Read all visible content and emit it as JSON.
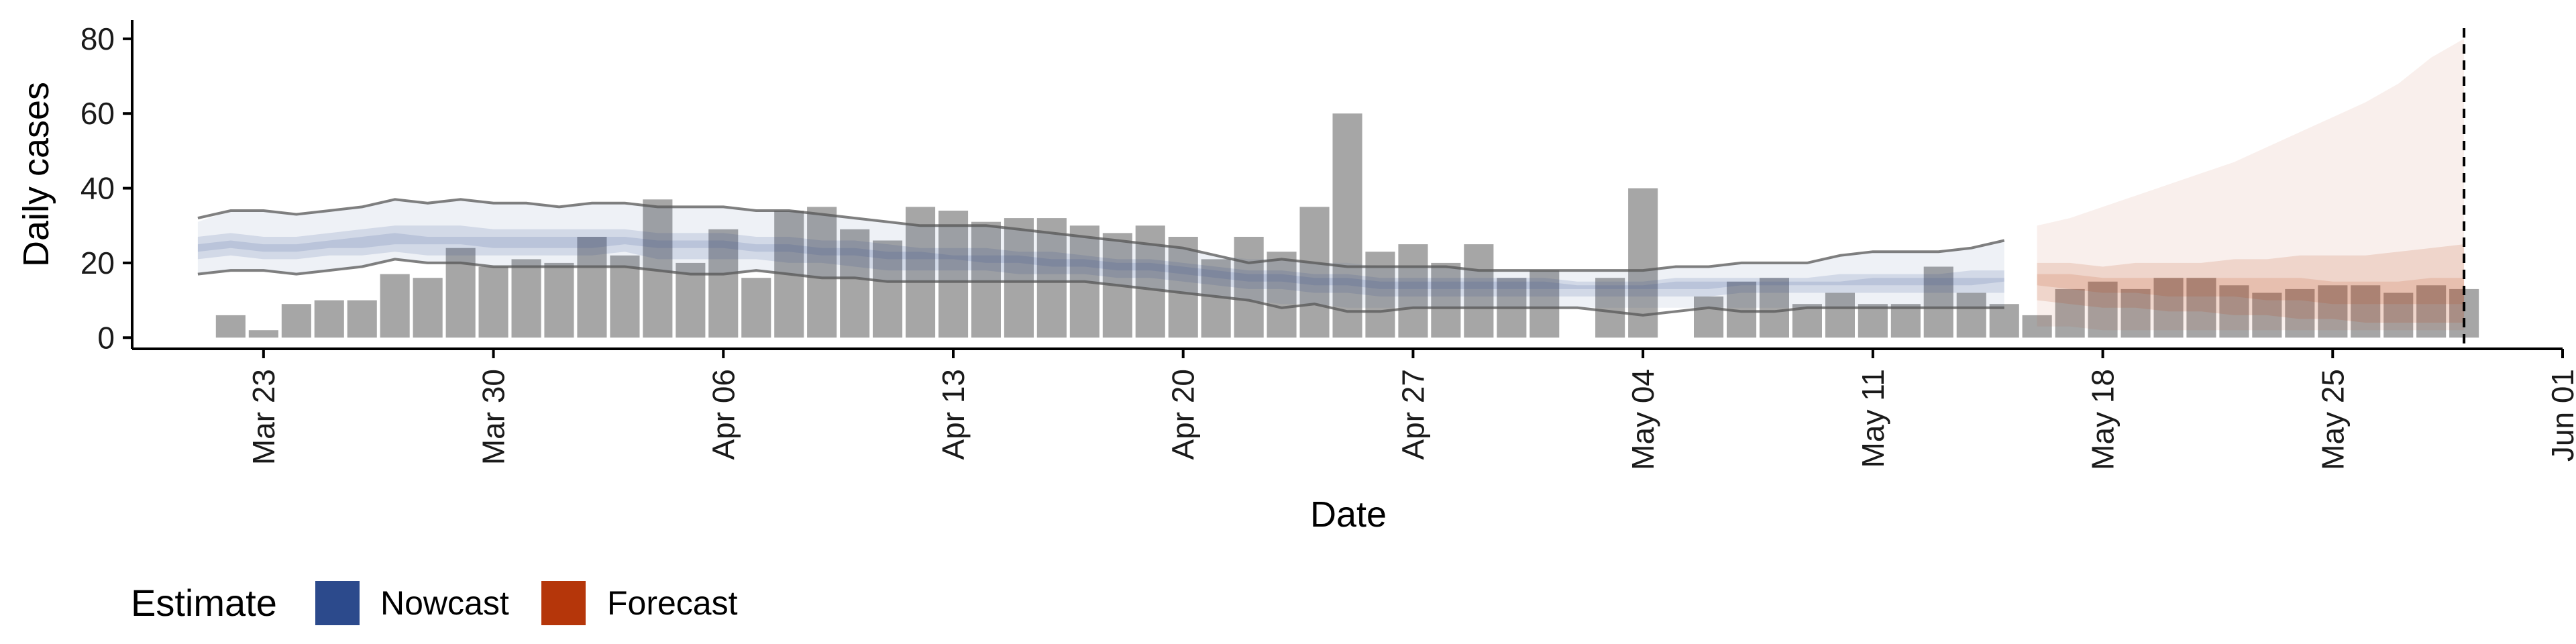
{
  "chart_data": {
    "type": "bar",
    "xlabel": "Date",
    "ylabel": "Daily cases",
    "ylim": [
      -3,
      85
    ],
    "xlim": [
      "2020-03-19",
      "2020-06-01"
    ],
    "y_ticks": [
      0,
      20,
      40,
      60,
      80
    ],
    "x_ticks": [
      "2020-03-23",
      "2020-03-30",
      "2020-04-06",
      "2020-04-13",
      "2020-04-20",
      "2020-04-27",
      "2020-05-04",
      "2020-05-11",
      "2020-05-18",
      "2020-05-25",
      "2020-06-01"
    ],
    "x_tick_labels": [
      "Mar 23",
      "Mar 30",
      "Apr 06",
      "Apr 13",
      "Apr 20",
      "Apr 27",
      "May 04",
      "May 11",
      "May 18",
      "May 25",
      "Jun 01"
    ],
    "grid": false,
    "legend_position": "bottom-left",
    "bars": {
      "dates": [
        "2020-03-22",
        "2020-03-23",
        "2020-03-24",
        "2020-03-25",
        "2020-03-26",
        "2020-03-27",
        "2020-03-28",
        "2020-03-29",
        "2020-03-30",
        "2020-03-31",
        "2020-04-01",
        "2020-04-02",
        "2020-04-03",
        "2020-04-04",
        "2020-04-05",
        "2020-04-06",
        "2020-04-07",
        "2020-04-08",
        "2020-04-09",
        "2020-04-10",
        "2020-04-11",
        "2020-04-12",
        "2020-04-13",
        "2020-04-14",
        "2020-04-15",
        "2020-04-16",
        "2020-04-17",
        "2020-04-18",
        "2020-04-19",
        "2020-04-20",
        "2020-04-21",
        "2020-04-22",
        "2020-04-23",
        "2020-04-24",
        "2020-04-25",
        "2020-04-26",
        "2020-04-27",
        "2020-04-28",
        "2020-04-29",
        "2020-04-30",
        "2020-05-01",
        "2020-05-02",
        "2020-05-03",
        "2020-05-04",
        "2020-05-05",
        "2020-05-06",
        "2020-05-07",
        "2020-05-08",
        "2020-05-09",
        "2020-05-10",
        "2020-05-11",
        "2020-05-12",
        "2020-05-13",
        "2020-05-14",
        "2020-05-15",
        "2020-05-16",
        "2020-05-17",
        "2020-05-18",
        "2020-05-19",
        "2020-05-20",
        "2020-05-21",
        "2020-05-22",
        "2020-05-23",
        "2020-05-24",
        "2020-05-25",
        "2020-05-26",
        "2020-05-27",
        "2020-05-28",
        "2020-05-29"
      ],
      "values": [
        6,
        2,
        9,
        10,
        10,
        17,
        16,
        24,
        19,
        21,
        20,
        27,
        22,
        37,
        20,
        29,
        16,
        34,
        35,
        29,
        26,
        35,
        34,
        31,
        32,
        32,
        30,
        28,
        30,
        27,
        21,
        27,
        23,
        35,
        60,
        23,
        25,
        20,
        25,
        16,
        18,
        0,
        16,
        40,
        0,
        11,
        15,
        16,
        9,
        12,
        9,
        9,
        19,
        12,
        9,
        6,
        13,
        15,
        13,
        16,
        16,
        14,
        12,
        13,
        14,
        14,
        12,
        14,
        13
      ],
      "color": "#a6a6a6"
    },
    "series": [
      {
        "name": "Nowcast",
        "color": "#2c4a8c",
        "dates": [
          "2020-03-21",
          "2020-03-22",
          "2020-03-23",
          "2020-03-24",
          "2020-03-25",
          "2020-03-26",
          "2020-03-27",
          "2020-03-28",
          "2020-03-29",
          "2020-03-30",
          "2020-03-31",
          "2020-04-01",
          "2020-04-02",
          "2020-04-03",
          "2020-04-04",
          "2020-04-05",
          "2020-04-06",
          "2020-04-07",
          "2020-04-08",
          "2020-04-09",
          "2020-04-10",
          "2020-04-11",
          "2020-04-12",
          "2020-04-13",
          "2020-04-14",
          "2020-04-15",
          "2020-04-16",
          "2020-04-17",
          "2020-04-18",
          "2020-04-19",
          "2020-04-20",
          "2020-04-21",
          "2020-04-22",
          "2020-04-23",
          "2020-04-24",
          "2020-04-25",
          "2020-04-26",
          "2020-04-27",
          "2020-04-28",
          "2020-04-29",
          "2020-04-30",
          "2020-05-01",
          "2020-05-02",
          "2020-05-03",
          "2020-05-04",
          "2020-05-05",
          "2020-05-06",
          "2020-05-07",
          "2020-05-08",
          "2020-05-09",
          "2020-05-10",
          "2020-05-11",
          "2020-05-12",
          "2020-05-13",
          "2020-05-14",
          "2020-05-15"
        ],
        "lower_90": [
          17,
          18,
          18,
          17,
          18,
          19,
          21,
          20,
          20,
          19,
          19,
          19,
          19,
          19,
          18,
          17,
          17,
          18,
          17,
          16,
          16,
          15,
          15,
          15,
          15,
          15,
          15,
          15,
          14,
          13,
          12,
          11,
          10,
          9,
          9,
          8,
          8,
          8,
          8,
          8,
          8,
          8,
          8,
          8,
          8,
          8,
          8,
          8,
          8,
          8,
          8,
          8,
          8,
          8,
          8,
          8
        ],
        "upper_90": [
          31,
          34,
          34,
          33,
          34,
          35,
          37,
          36,
          37,
          36,
          36,
          35,
          36,
          36,
          35,
          35,
          35,
          34,
          34,
          33,
          32,
          31,
          30,
          30,
          30,
          29,
          28,
          27,
          26,
          25,
          24,
          22,
          21,
          21,
          20,
          20,
          19,
          19,
          19,
          18,
          18,
          18,
          18,
          18,
          18,
          19,
          19,
          20,
          20,
          20,
          22,
          23,
          23,
          23,
          24,
          26
        ],
        "lower_50": [
          21,
          22,
          21,
          21,
          22,
          22,
          23,
          22,
          22,
          22,
          22,
          22,
          22,
          23,
          21,
          21,
          21,
          21,
          20,
          20,
          19,
          18,
          18,
          18,
          18,
          17,
          17,
          17,
          16,
          16,
          15,
          14,
          13,
          13,
          12,
          12,
          11,
          11,
          11,
          11,
          11,
          11,
          11,
          11,
          11,
          11,
          11,
          12,
          12,
          12,
          12,
          12,
          12,
          12,
          12,
          12
        ],
        "upper_50": [
          27,
          28,
          27,
          27,
          28,
          29,
          30,
          30,
          30,
          29,
          29,
          29,
          29,
          29,
          28,
          28,
          28,
          27,
          27,
          26,
          26,
          25,
          24,
          24,
          24,
          23,
          23,
          22,
          21,
          21,
          20,
          19,
          18,
          18,
          17,
          17,
          16,
          16,
          16,
          16,
          16,
          16,
          15,
          15,
          15,
          16,
          16,
          16,
          16,
          16,
          17,
          17,
          17,
          17,
          18,
          18
        ],
        "lower_20": [
          23,
          24,
          23,
          23,
          24,
          24,
          25,
          25,
          25,
          24,
          24,
          24,
          24,
          25,
          24,
          24,
          24,
          23,
          23,
          22,
          22,
          21,
          21,
          21,
          20,
          20,
          19,
          19,
          18,
          18,
          17,
          16,
          15,
          15,
          14,
          14,
          13,
          13,
          13,
          13,
          13,
          13,
          13,
          13,
          13,
          13,
          13,
          14,
          14,
          14,
          14,
          14,
          14,
          14,
          14,
          15
        ],
        "upper_20": [
          25,
          26,
          25,
          25,
          26,
          27,
          28,
          27,
          27,
          27,
          27,
          27,
          27,
          27,
          26,
          26,
          26,
          25,
          25,
          24,
          24,
          23,
          23,
          22,
          22,
          22,
          21,
          21,
          20,
          20,
          19,
          18,
          17,
          17,
          16,
          16,
          15,
          15,
          15,
          15,
          15,
          15,
          14,
          14,
          14,
          15,
          15,
          15,
          15,
          15,
          15,
          16,
          16,
          16,
          16,
          16
        ],
        "outer_lines": {
          "lower": [
            17,
            18,
            18,
            17,
            18,
            19,
            21,
            20,
            20,
            19,
            19,
            19,
            19,
            19,
            18,
            17,
            17,
            18,
            17,
            16,
            16,
            15,
            15,
            15,
            15,
            15,
            15,
            15,
            14,
            13,
            12,
            11,
            10,
            8,
            9,
            7,
            7,
            8,
            8,
            8,
            8,
            8,
            8,
            7,
            6,
            7,
            8,
            7,
            7,
            8,
            8,
            8,
            8,
            8,
            8,
            8
          ],
          "upper": [
            32,
            34,
            34,
            33,
            34,
            35,
            37,
            36,
            37,
            36,
            36,
            35,
            36,
            36,
            35,
            35,
            35,
            34,
            34,
            33,
            32,
            31,
            30,
            30,
            30,
            29,
            28,
            27,
            26,
            25,
            24,
            22,
            20,
            21,
            20,
            19,
            19,
            19,
            19,
            18,
            18,
            18,
            18,
            18,
            18,
            19,
            19,
            20,
            20,
            20,
            22,
            23,
            23,
            23,
            24,
            26
          ]
        }
      },
      {
        "name": "Forecast",
        "color": "#b5360a",
        "dates": [
          "2020-05-16",
          "2020-05-17",
          "2020-05-18",
          "2020-05-19",
          "2020-05-20",
          "2020-05-21",
          "2020-05-22",
          "2020-05-23",
          "2020-05-24",
          "2020-05-25",
          "2020-05-26",
          "2020-05-27",
          "2020-05-28",
          "2020-05-29"
        ],
        "lower_90": [
          3,
          3,
          2,
          2,
          2,
          2,
          2,
          2,
          2,
          2,
          2,
          2,
          2,
          2
        ],
        "upper_90": [
          30,
          32,
          35,
          38,
          41,
          44,
          47,
          51,
          55,
          59,
          63,
          68,
          75,
          80
        ],
        "lower_50": [
          10,
          9,
          8,
          8,
          7,
          7,
          6,
          6,
          5,
          5,
          4,
          4,
          4,
          4
        ],
        "upper_50": [
          20,
          20,
          19,
          20,
          20,
          20,
          21,
          21,
          22,
          22,
          22,
          23,
          24,
          25
        ],
        "lower_20": [
          14,
          13,
          12,
          12,
          11,
          11,
          11,
          10,
          10,
          9,
          9,
          9,
          9,
          9
        ],
        "upper_20": [
          17,
          17,
          16,
          16,
          16,
          16,
          16,
          16,
          16,
          15,
          15,
          15,
          16,
          16
        ]
      }
    ],
    "vline": {
      "date": "2020-05-29",
      "style": "dashed"
    }
  },
  "legend": {
    "title": "Estimate",
    "items": [
      {
        "label": "Nowcast",
        "color": "#2c4a8c"
      },
      {
        "label": "Forecast",
        "color": "#b5360a"
      }
    ]
  },
  "colors": {
    "bar": "#a6a6a6",
    "axis": "#000000",
    "nowcast_line": "#555555",
    "vline": "#000000"
  }
}
